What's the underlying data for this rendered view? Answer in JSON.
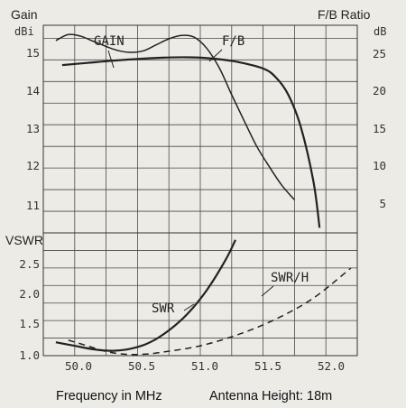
{
  "chart_data": [
    {
      "type": "line",
      "title": "",
      "left_axis": {
        "label": "Gain",
        "unit": "dBi",
        "ylim": [
          10.5,
          15.3
        ],
        "ticks": [
          "15",
          "14",
          "13",
          "12",
          "11"
        ]
      },
      "right_axis": {
        "label": "F/B Ratio",
        "unit": "dB",
        "ylim": [
          2,
          26.5
        ],
        "ticks": [
          "25",
          "20",
          "15",
          "10",
          "5"
        ]
      },
      "x": {
        "ylim_note": "",
        "range": [
          49.75,
          52.25
        ],
        "ticks": [
          "50.0",
          "50.5",
          "51.0",
          "51.5",
          "52.0"
        ]
      },
      "series": [
        {
          "name": "GAIN",
          "axis": "left",
          "x": [
            49.9,
            50.1,
            50.3,
            50.5,
            50.7,
            50.9,
            51.1,
            51.3,
            51.5,
            51.6,
            51.7,
            51.8,
            51.9,
            51.95
          ],
          "y": [
            14.38,
            14.43,
            14.48,
            14.52,
            14.55,
            14.56,
            14.53,
            14.45,
            14.3,
            14.1,
            13.7,
            12.95,
            11.7,
            10.62
          ]
        },
        {
          "name": "F/B",
          "axis": "right",
          "x": [
            49.85,
            49.95,
            50.05,
            50.15,
            50.25,
            50.35,
            50.45,
            50.55,
            50.65,
            50.75,
            50.85,
            50.95,
            51.05,
            51.15,
            51.25,
            51.35,
            51.45,
            51.55,
            51.65,
            51.75
          ],
          "y": [
            24.7,
            25.4,
            25.2,
            24.6,
            24.0,
            23.5,
            23.3,
            23.5,
            24.2,
            24.9,
            25.3,
            25.1,
            23.8,
            21.5,
            18.3,
            15.2,
            12.2,
            9.8,
            7.6,
            5.9
          ]
        }
      ]
    },
    {
      "type": "line",
      "ylabel": "VSWR",
      "ylim": [
        1.0,
        2.75
      ],
      "yticks": [
        "2.5",
        "2.0",
        "1.5",
        "1.0"
      ],
      "xlabel": "Frequency in MHz",
      "xticks": [
        "50.0",
        "50.5",
        "51.0",
        "51.5",
        "52.0"
      ],
      "x_range": [
        49.75,
        52.25
      ],
      "series": [
        {
          "name": "SWR",
          "style": "solid",
          "x": [
            49.85,
            50.0,
            50.15,
            50.3,
            50.45,
            50.6,
            50.75,
            50.9,
            51.05,
            51.2,
            51.28
          ],
          "y": [
            1.19,
            1.14,
            1.09,
            1.07,
            1.1,
            1.19,
            1.36,
            1.6,
            1.93,
            2.36,
            2.65
          ]
        },
        {
          "name": "SWR/H",
          "style": "dashed",
          "x": [
            49.95,
            50.1,
            50.25,
            50.4,
            50.55,
            50.7,
            51.0,
            51.3,
            51.6,
            51.9,
            52.2
          ],
          "y": [
            1.22,
            1.14,
            1.06,
            1.02,
            1.02,
            1.05,
            1.14,
            1.3,
            1.52,
            1.82,
            2.25
          ]
        }
      ],
      "caption_right": "Antenna Height: 18m"
    }
  ]
}
